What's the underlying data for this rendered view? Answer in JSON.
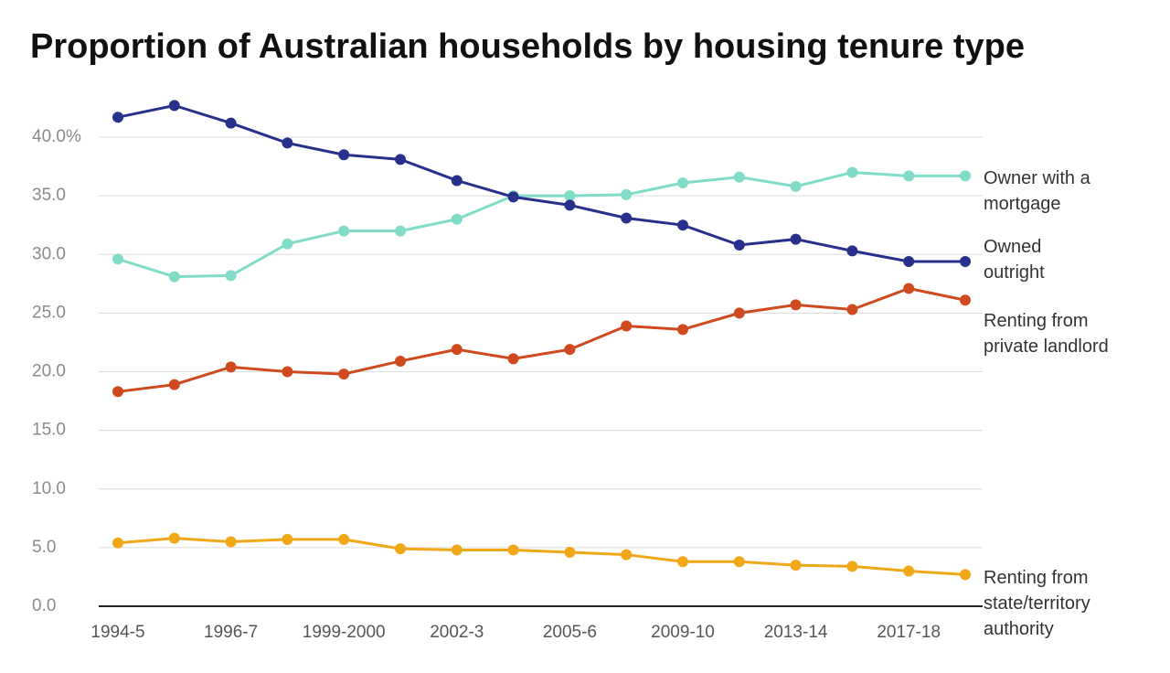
{
  "chart_data": {
    "type": "line",
    "title": "Proportion of Australian households by housing tenure type",
    "categories": [
      "1994-5",
      null,
      "1996-7",
      null,
      "1999-2000",
      null,
      "2002-3",
      null,
      "2005-6",
      null,
      "2009-10",
      null,
      "2013-14",
      null,
      "2017-18",
      null
    ],
    "series": [
      {
        "name": "Owner with a mortgage",
        "color": "#80dcc7",
        "values": [
          29.6,
          28.1,
          28.2,
          30.9,
          32.0,
          32.0,
          33.0,
          35.0,
          35.0,
          35.1,
          36.1,
          36.6,
          35.8,
          37.0,
          36.7,
          36.7
        ]
      },
      {
        "name": "Owned outright",
        "color": "#27318b",
        "values": [
          41.7,
          42.7,
          41.2,
          39.5,
          38.5,
          38.1,
          36.3,
          34.9,
          34.2,
          33.1,
          32.5,
          30.8,
          31.3,
          30.3,
          29.4,
          29.4
        ]
      },
      {
        "name": "Renting from private landlord",
        "color": "#d04a1f",
        "values": [
          18.3,
          18.9,
          20.4,
          20.0,
          19.8,
          20.9,
          21.9,
          21.1,
          21.9,
          23.9,
          23.6,
          25.0,
          25.7,
          25.3,
          27.1,
          26.1
        ]
      },
      {
        "name": "Renting from state/territory authority",
        "color": "#f0a818",
        "values": [
          5.4,
          5.8,
          5.5,
          5.7,
          5.7,
          4.9,
          4.8,
          4.8,
          4.6,
          4.4,
          3.8,
          3.8,
          3.5,
          3.4,
          3.0,
          2.7
        ]
      }
    ],
    "ylim": [
      0,
      40
    ],
    "yticks": [
      {
        "value": 0,
        "label": "0.0"
      },
      {
        "value": 5,
        "label": "5.0"
      },
      {
        "value": 10,
        "label": "10.0"
      },
      {
        "value": 15,
        "label": "15.0"
      },
      {
        "value": 20,
        "label": "20.0"
      },
      {
        "value": 25,
        "label": "25.0"
      },
      {
        "value": 30,
        "label": "30.0"
      },
      {
        "value": 35,
        "label": "35.0"
      },
      {
        "value": 40,
        "label": "40.0%"
      }
    ],
    "grid": true
  }
}
